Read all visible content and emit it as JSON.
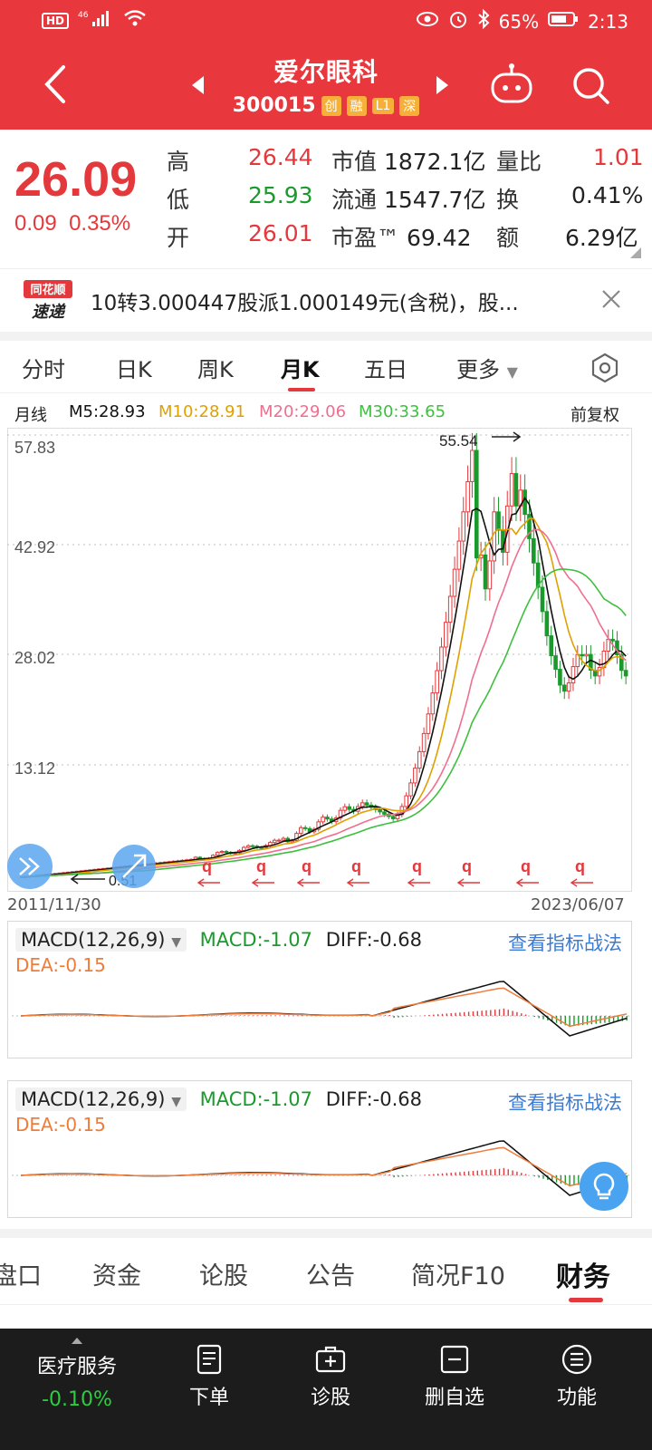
{
  "status": {
    "battery_pct": "65%",
    "time": "2:13",
    "net": "46"
  },
  "header": {
    "title": "爱尔眼科",
    "code": "300015",
    "tags": [
      "创",
      "融",
      "L1",
      "深"
    ]
  },
  "quote": {
    "price": "26.09",
    "change": "0.09",
    "change_pct": "0.35%",
    "high_label": "高",
    "high": "26.44",
    "low_label": "低",
    "low": "25.93",
    "open_label": "开",
    "open": "26.01",
    "mktcap_label": "市值",
    "mktcap": "1872.1亿",
    "float_label": "流通",
    "float": "1547.7亿",
    "pe_label": "市盈™",
    "pe": "69.42",
    "vol_ratio_label": "量比",
    "vol_ratio": "1.01",
    "turnover_label": "换",
    "turnover": "0.41%",
    "amount_label": "额",
    "amount": "6.29亿"
  },
  "news": {
    "source": "同花顺速递",
    "logo_top": "同花顺",
    "logo_bottom": "速递",
    "text": "10转3.000447股派1.000149元(含税)，股..."
  },
  "tabs": [
    {
      "label": "分时"
    },
    {
      "label": "日K"
    },
    {
      "label": "周K"
    },
    {
      "label": "月K"
    },
    {
      "label": "五日"
    },
    {
      "label": "更多"
    }
  ],
  "ma": {
    "name": "月线",
    "m5": "M5:28.93",
    "m10": "M10:28.91",
    "m20": "M20:29.06",
    "m30": "M30:33.65",
    "adjust": "前复权"
  },
  "chart_data": {
    "type": "candlestick",
    "y_ticks": [
      "57.83",
      "42.92",
      "28.02",
      "13.12"
    ],
    "ylim": [
      0.51,
      57.83
    ],
    "max_label": "55.54",
    "min_label": "0.51",
    "start_date": "2011/11/30",
    "end_date": "2023/06/07",
    "series_colors": {
      "up": "#e4393c",
      "down": "#1a9a2c",
      "m5": "#111111",
      "m10": "#e0a000",
      "m20": "#ef6f8f",
      "m30": "#3fbf3f"
    }
  },
  "macd": {
    "name": "MACD(12,26,9)",
    "macd": "MACD:-1.07",
    "diff": "DIFF:-0.68",
    "dea": "DEA:-0.15",
    "link": "查看指标战法"
  },
  "bottom_tabs": [
    {
      "label": "盘口"
    },
    {
      "label": "资金"
    },
    {
      "label": "论股"
    },
    {
      "label": "公告"
    },
    {
      "label": "简况F10"
    },
    {
      "label": "财务"
    }
  ],
  "navbar": {
    "sector": "医疗服务",
    "sector_chg": "-0.10%",
    "items": [
      {
        "label": "下单"
      },
      {
        "label": "诊股"
      },
      {
        "label": "删自选"
      },
      {
        "label": "功能"
      }
    ]
  }
}
